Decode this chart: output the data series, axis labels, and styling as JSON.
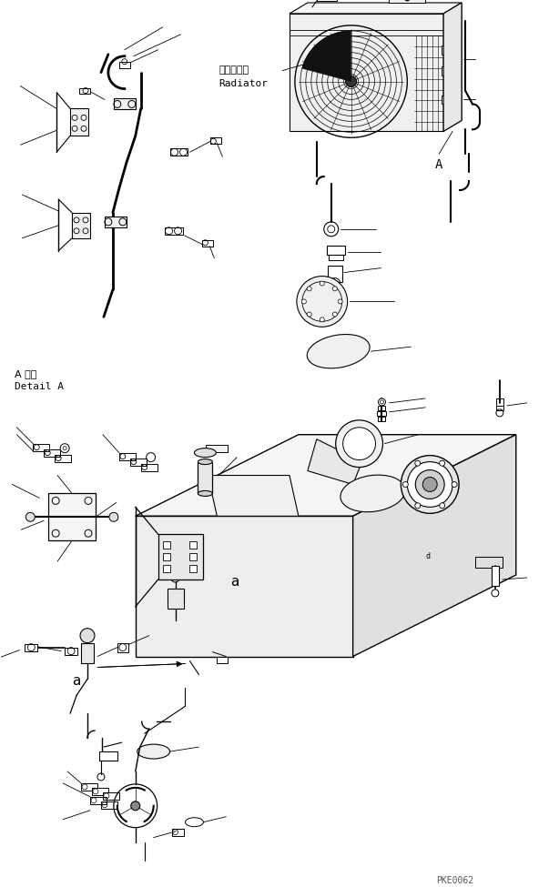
{
  "bg_color": "#ffffff",
  "line_color": "#000000",
  "fig_width": 6.14,
  "fig_height": 9.75,
  "dpi": 100,
  "watermark": "PKE0062",
  "label_radiator_jp": "ラジエータ",
  "label_radiator_en": "Radiator",
  "label_detail_jp": "A 詳細",
  "label_detail_en": "Detail A",
  "label_A": "A",
  "label_a1": "a",
  "label_a2": "a"
}
